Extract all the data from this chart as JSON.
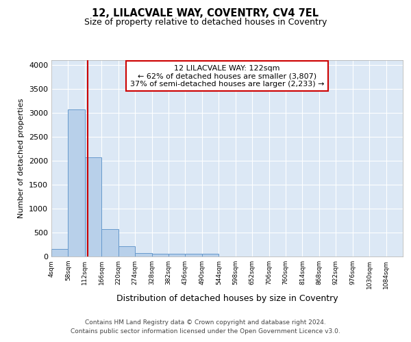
{
  "title": "12, LILACVALE WAY, COVENTRY, CV4 7EL",
  "subtitle": "Size of property relative to detached houses in Coventry",
  "xlabel": "Distribution of detached houses by size in Coventry",
  "ylabel": "Number of detached properties",
  "bin_labels": [
    "4sqm",
    "58sqm",
    "112sqm",
    "166sqm",
    "220sqm",
    "274sqm",
    "328sqm",
    "382sqm",
    "436sqm",
    "490sqm",
    "544sqm",
    "598sqm",
    "652sqm",
    "706sqm",
    "760sqm",
    "814sqm",
    "868sqm",
    "922sqm",
    "976sqm",
    "1030sqm",
    "1084sqm"
  ],
  "bin_edges": [
    4,
    58,
    112,
    166,
    220,
    274,
    328,
    382,
    436,
    490,
    544,
    598,
    652,
    706,
    760,
    814,
    868,
    922,
    976,
    1030,
    1084
  ],
  "bar_heights": [
    150,
    3060,
    2070,
    570,
    210,
    75,
    55,
    55,
    50,
    50,
    0,
    0,
    0,
    0,
    0,
    0,
    0,
    0,
    0,
    0
  ],
  "bar_color": "#b8d0ea",
  "bar_edge_color": "#6699cc",
  "property_size": 122,
  "vline_color": "#cc0000",
  "annotation_line1": "12 LILACVALE WAY: 122sqm",
  "annotation_line2": "← 62% of detached houses are smaller (3,807)",
  "annotation_line3": "37% of semi-detached houses are larger (2,233) →",
  "annotation_box_color": "#ffffff",
  "annotation_box_edge": "#cc0000",
  "ylim": [
    0,
    4100
  ],
  "yticks": [
    0,
    500,
    1000,
    1500,
    2000,
    2500,
    3000,
    3500,
    4000
  ],
  "footer_line1": "Contains HM Land Registry data © Crown copyright and database right 2024.",
  "footer_line2": "Contains public sector information licensed under the Open Government Licence v3.0.",
  "fig_bg_color": "#ffffff",
  "plot_bg_color": "#dce8f5"
}
